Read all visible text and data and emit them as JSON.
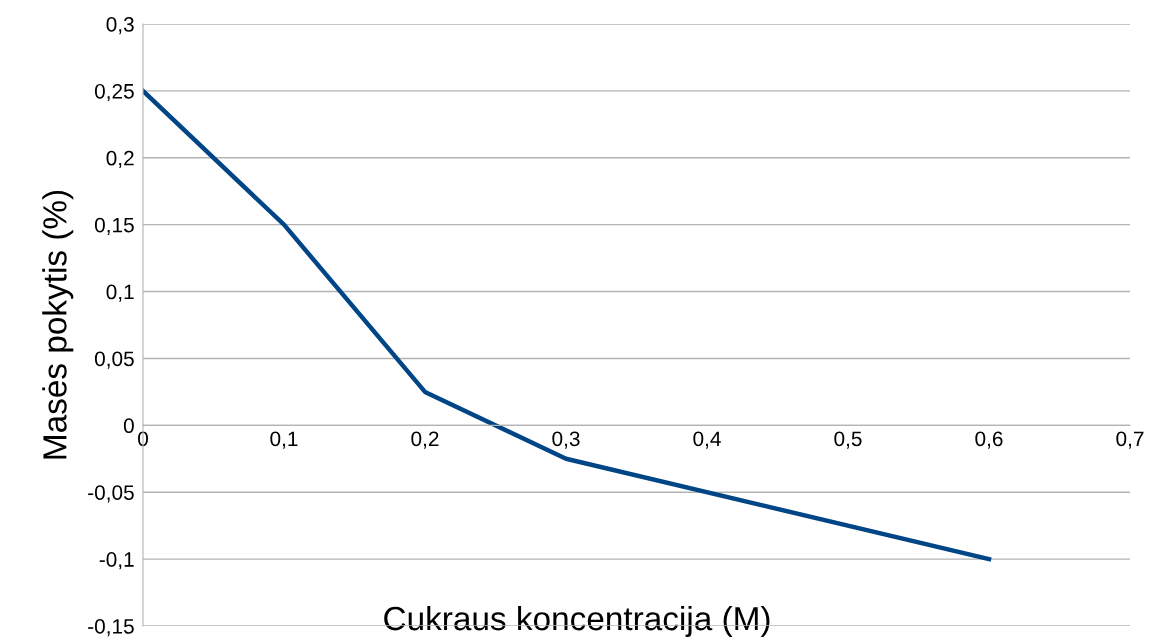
{
  "chart_data": {
    "type": "line",
    "xlabel": "Cukraus koncentracija (M)",
    "ylabel": "Masės pokytis (%)",
    "x": [
      0,
      0.1,
      0.2,
      0.3,
      0.6
    ],
    "series": [
      {
        "color": "#004586",
        "values": [
          0.25,
          0.15,
          0.025,
          -0.025,
          -0.1
        ]
      }
    ],
    "xlim": [
      0,
      0.7
    ],
    "xticks": [
      {
        "value": 0,
        "label": "0"
      },
      {
        "value": 0.1,
        "label": "0,1"
      },
      {
        "value": 0.2,
        "label": "0,2"
      },
      {
        "value": 0.3,
        "label": "0,3"
      },
      {
        "value": 0.4,
        "label": "0,4"
      },
      {
        "value": 0.5,
        "label": "0,5"
      },
      {
        "value": 0.6,
        "label": "0,6"
      },
      {
        "value": 0.7,
        "label": "0,7"
      }
    ],
    "ylim": [
      -0.15,
      0.3
    ],
    "yticks": [
      {
        "value": -0.15,
        "label": "-0,15"
      },
      {
        "value": -0.1,
        "label": "-0,1"
      },
      {
        "value": -0.05,
        "label": "-0,05"
      },
      {
        "value": 0,
        "label": "0"
      },
      {
        "value": 0.05,
        "label": "0,05"
      },
      {
        "value": 0.1,
        "label": "0,1"
      },
      {
        "value": 0.15,
        "label": "0,15"
      },
      {
        "value": 0.2,
        "label": "0,2"
      },
      {
        "value": 0.25,
        "label": "0,25"
      },
      {
        "value": 0.3,
        "label": "0,3"
      }
    ],
    "grid": "y",
    "marker": "none",
    "line_style": "solid"
  }
}
